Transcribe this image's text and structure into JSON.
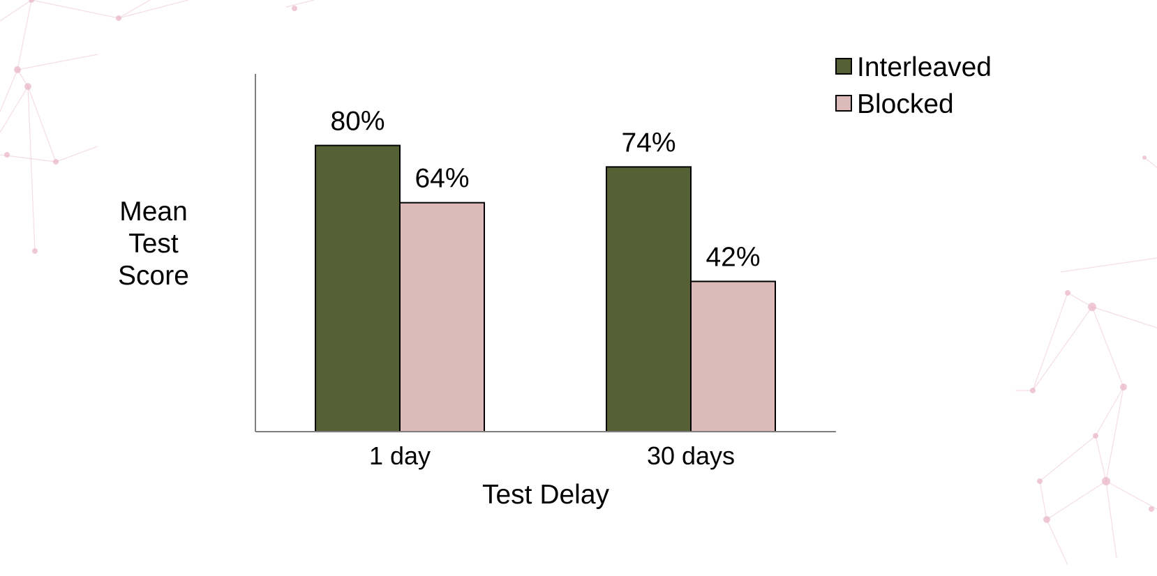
{
  "theme": {
    "background": "#ffffff",
    "decor_color": "#e8b4c4",
    "axis_color": "#7f7f7f"
  },
  "decor": {
    "icon": "network-pattern-decoration"
  },
  "chart_data": {
    "type": "bar",
    "categories": [
      "1 day",
      "30 days"
    ],
    "series": [
      {
        "name": "Interleaved",
        "values": [
          80,
          74
        ],
        "labels": [
          "80%",
          "74%"
        ],
        "color": "#556135"
      },
      {
        "name": "Blocked",
        "values": [
          64,
          42
        ],
        "labels": [
          "64%",
          "42%"
        ],
        "color": "#dbbab9"
      }
    ],
    "xlabel": "Test Delay",
    "ylabel": "Mean Test Score",
    "ylim": [
      0,
      100
    ],
    "grid": false,
    "legend_position": "top-right",
    "show_y_ticks": false
  }
}
